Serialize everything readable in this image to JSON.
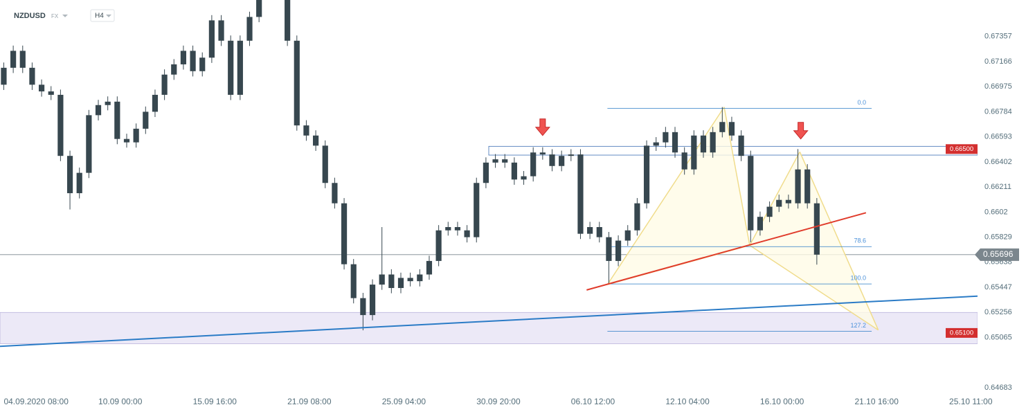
{
  "chart_data": {
    "type": "candlestick",
    "symbol": "NZDUSD",
    "market": "FX",
    "timeframe": "H4",
    "color": "#37474f",
    "open": [
      0.6699,
      0.67119,
      0.67248,
      0.67119,
      0.6699,
      0.66939,
      0.66913,
      0.66448,
      0.66164,
      0.66319,
      0.66758,
      0.66835,
      0.66861,
      0.66577,
      0.66551,
      0.66655,
      0.66784,
      0.66913,
      0.67067,
      0.67145,
      0.67248,
      0.67093,
      0.67196,
      0.6748,
      0.67325,
      0.66913,
      0.67325,
      0.67506,
      0.67738,
      0.6779,
      0.67687,
      0.67325,
      0.6668,
      0.66603,
      0.66526,
      0.66242,
      0.66087,
      0.65623,
      0.65365,
      0.65236,
      0.65468,
      0.65545,
      0.65442,
      0.65519,
      0.65494,
      0.65545,
      0.65648,
      0.65881,
      0.65906,
      0.65881,
      0.65829,
      0.66242,
      0.66397,
      0.66422,
      0.66397,
      0.66268,
      0.66293,
      0.66474,
      0.66459,
      0.66371,
      0.66448,
      0.66459,
      0.65855,
      0.65906,
      0.65829,
      0.65648,
      0.65803,
      0.65881,
      0.66087,
      0.66526,
      0.66551,
      0.66629,
      0.66474,
      0.66345,
      0.66603,
      0.66474,
      0.66629,
      0.66706,
      0.66603,
      0.66448,
      0.65881,
      0.65984,
      0.66061,
      0.66113,
      0.66087,
      0.66345,
      0.66087
    ],
    "high": [
      0.67159,
      0.67288,
      0.67288,
      0.67159,
      0.6703,
      0.66979,
      0.66953,
      0.66488,
      0.66359,
      0.66798,
      0.66875,
      0.66901,
      0.66901,
      0.66617,
      0.66695,
      0.66824,
      0.66953,
      0.67107,
      0.67185,
      0.67288,
      0.67288,
      0.67236,
      0.6752,
      0.6752,
      0.67365,
      0.67365,
      0.67546,
      0.67778,
      0.6783,
      0.6783,
      0.67727,
      0.67365,
      0.6672,
      0.66643,
      0.66566,
      0.66282,
      0.66127,
      0.65663,
      0.65405,
      0.65508,
      0.65906,
      0.65585,
      0.65559,
      0.65559,
      0.65585,
      0.65688,
      0.65921,
      0.65946,
      0.65946,
      0.65921,
      0.66282,
      0.66437,
      0.66462,
      0.66462,
      0.66437,
      0.66333,
      0.66514,
      0.66514,
      0.66499,
      0.66488,
      0.66499,
      0.66499,
      0.65946,
      0.65946,
      0.65869,
      0.65843,
      0.65921,
      0.66127,
      0.66566,
      0.66591,
      0.66669,
      0.66669,
      0.66514,
      0.66643,
      0.66643,
      0.66669,
      0.6682,
      0.66746,
      0.66643,
      0.66488,
      0.66024,
      0.66101,
      0.66153,
      0.66153,
      0.665,
      0.66385,
      0.66127
    ],
    "low": [
      0.6695,
      0.67079,
      0.67079,
      0.6695,
      0.66899,
      0.66873,
      0.66408,
      0.6604,
      0.66124,
      0.66279,
      0.66718,
      0.66795,
      0.66537,
      0.66511,
      0.66511,
      0.66615,
      0.66744,
      0.66873,
      0.67027,
      0.67105,
      0.67053,
      0.67053,
      0.67156,
      0.67285,
      0.66873,
      0.66873,
      0.67285,
      0.67466,
      0.67698,
      0.67647,
      0.67285,
      0.6664,
      0.66563,
      0.66486,
      0.66202,
      0.66047,
      0.65583,
      0.65325,
      0.6512,
      0.65196,
      0.65428,
      0.65402,
      0.65402,
      0.65454,
      0.65454,
      0.65505,
      0.65608,
      0.65841,
      0.65841,
      0.65789,
      0.65789,
      0.66202,
      0.66357,
      0.66357,
      0.66228,
      0.66228,
      0.66253,
      0.66419,
      0.66331,
      0.66331,
      0.66408,
      0.65815,
      0.65815,
      0.65789,
      0.6548,
      0.65608,
      0.65763,
      0.65841,
      0.66047,
      0.66486,
      0.66511,
      0.66434,
      0.66305,
      0.66305,
      0.66434,
      0.66434,
      0.66589,
      0.66563,
      0.66408,
      0.6579,
      0.65841,
      0.65944,
      0.66021,
      0.66047,
      0.66047,
      0.66047,
      0.6562
    ],
    "close": [
      0.67119,
      0.67248,
      0.67119,
      0.6699,
      0.66939,
      0.66913,
      0.66448,
      0.66164,
      0.66319,
      0.66758,
      0.66835,
      0.66861,
      0.66577,
      0.66551,
      0.66655,
      0.66784,
      0.66913,
      0.67067,
      0.67145,
      0.67248,
      0.67093,
      0.67196,
      0.6748,
      0.67325,
      0.66913,
      0.67325,
      0.67506,
      0.67738,
      0.6779,
      0.67687,
      0.67325,
      0.6668,
      0.66603,
      0.66526,
      0.66242,
      0.66087,
      0.65623,
      0.65365,
      0.65236,
      0.65468,
      0.65545,
      0.65442,
      0.65519,
      0.65494,
      0.65545,
      0.65648,
      0.65881,
      0.65906,
      0.65881,
      0.65829,
      0.66242,
      0.66397,
      0.66422,
      0.66397,
      0.66268,
      0.66293,
      0.66474,
      0.66459,
      0.66371,
      0.66448,
      0.66459,
      0.65855,
      0.65906,
      0.65829,
      0.65648,
      0.65803,
      0.65881,
      0.66087,
      0.66526,
      0.66551,
      0.66629,
      0.66474,
      0.66345,
      0.66603,
      0.66474,
      0.66629,
      0.66706,
      0.66603,
      0.66448,
      0.65881,
      0.65984,
      0.66061,
      0.66113,
      0.66087,
      0.66345,
      0.66087,
      0.65696
    ],
    "xlim": [
      -0.4,
      103
    ],
    "xticks": [
      {
        "value": 0,
        "label": "04.09.2020 08:00"
      },
      {
        "value": 10,
        "label": "10.09 00:00"
      },
      {
        "value": 20,
        "label": "15.09 16:00"
      },
      {
        "value": 30,
        "label": "21.09 08:00"
      },
      {
        "value": 40,
        "label": "25.09 04:00"
      },
      {
        "value": 50,
        "label": "30.09 20:00"
      },
      {
        "value": 60,
        "label": "06.10 12:00"
      },
      {
        "value": 70,
        "label": "12.10 04:00"
      },
      {
        "value": 80,
        "label": "16.10 00:00"
      },
      {
        "value": 90,
        "label": "21.10 16:00"
      },
      {
        "value": 100,
        "label": "25.10 11:00"
      }
    ],
    "ylim": [
      0.64683,
      0.67635
    ],
    "yticks": [
      0.67357,
      0.67166,
      0.66975,
      0.66784,
      0.66593,
      0.66402,
      0.66211,
      0.6602,
      0.65829,
      0.65638,
      0.65447,
      0.65256,
      0.65065,
      0.64683
    ],
    "current_price": 0.65696,
    "levels": [
      {
        "price": 0.665,
        "label": "0.66500",
        "zone": [
          0.66454,
          0.66521
        ],
        "from": 51.3,
        "color": "#d32f2f"
      },
      {
        "price": 0.651,
        "label": "0.65100",
        "zone": [
          0.65018,
          0.65256
        ],
        "from": -0.4,
        "color": "#d32f2f"
      }
    ],
    "fib_levels": [
      {
        "label": "0.0",
        "price": 0.6681
      },
      {
        "label": "78.6",
        "price": 0.65757
      },
      {
        "label": "100.0",
        "price": 0.65473
      },
      {
        "label": "127.2",
        "price": 0.65112
      }
    ],
    "fib_x": [
      63.85,
      91.8
    ],
    "trendlines": [
      {
        "color": "#2a7bc6",
        "points": [
          {
            "index": -0.4,
            "price": 0.64998
          },
          {
            "index": 103,
            "price": 0.6538
          }
        ]
      },
      {
        "color": "#e03b2b",
        "points": [
          {
            "index": 61.65,
            "price": 0.65427
          },
          {
            "index": 91.2,
            "price": 0.66015
          }
        ]
      }
    ],
    "pattern": {
      "color": "#f0dc8c",
      "points": [
        {
          "index": 63.85,
          "price": 0.65468
        },
        {
          "index": 76.2,
          "price": 0.6682
        },
        {
          "index": 78.9,
          "price": 0.65767
        },
        {
          "index": 84.2,
          "price": 0.66479
        },
        {
          "index": 92.5,
          "price": 0.65122
        }
      ]
    },
    "arrows": [
      {
        "index": 57,
        "price": 0.66603
      },
      {
        "index": 84.3,
        "price": 0.66577
      }
    ]
  }
}
